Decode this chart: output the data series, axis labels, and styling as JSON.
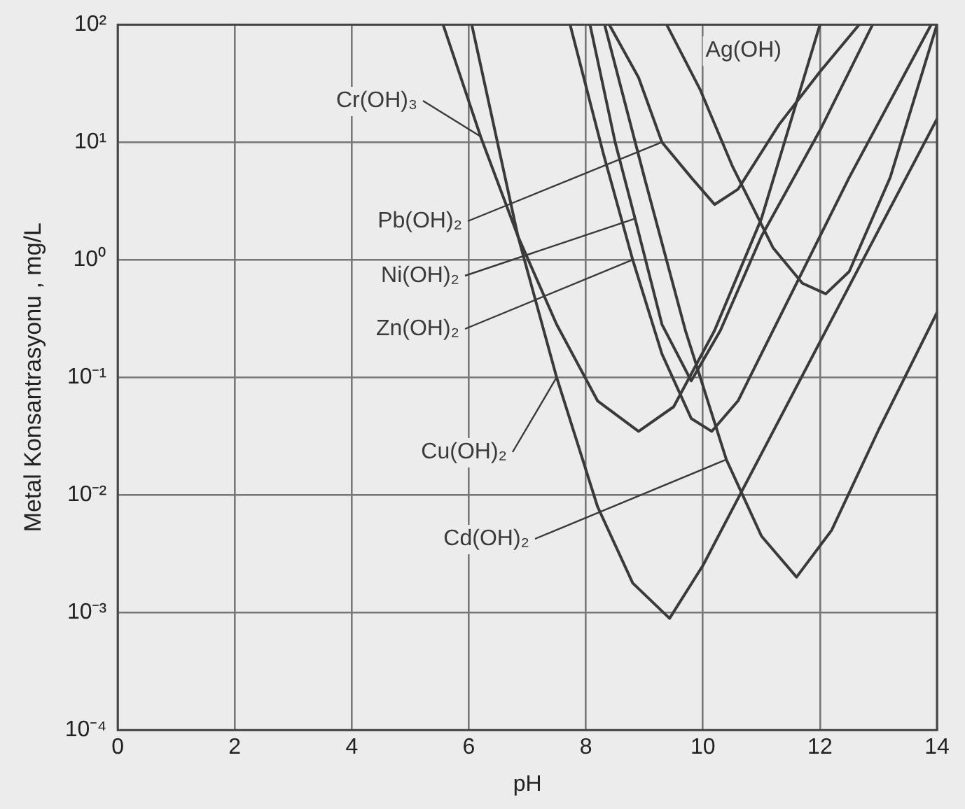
{
  "chart_data": {
    "type": "line",
    "xlabel": "pH",
    "ylabel": "Metal Konsantrasyonu , mg/L",
    "log": "y",
    "grid": true,
    "legend": false,
    "marker": "none",
    "line_style": "solid",
    "xlim": [
      0,
      14
    ],
    "xticks": [
      0,
      2,
      4,
      6,
      8,
      10,
      12,
      14
    ],
    "ylim": [
      0.0001,
      100
    ],
    "yticks": [
      {
        "value": 0.0001,
        "label": "10⁻⁴"
      },
      {
        "value": 0.001,
        "label": "10⁻³"
      },
      {
        "value": 0.01,
        "label": "10⁻²"
      },
      {
        "value": 0.1,
        "label": "10⁻¹"
      },
      {
        "value": 1,
        "label": "10⁰"
      },
      {
        "value": 10,
        "label": "10¹"
      },
      {
        "value": 100,
        "label": "10²"
      }
    ],
    "series": [
      {
        "name": "Cr(OH)₃",
        "color": "#3a3a3a",
        "x": [
          5.56,
          6.2,
          6.84,
          7.5,
          8.2,
          8.9,
          9.5,
          10.2,
          11,
          12
        ],
        "values": [
          100,
          11.2,
          1.58,
          0.282,
          0.0631,
          0.0347,
          0.0562,
          0.251,
          2.24,
          100
        ]
      },
      {
        "name": "Pb(OH)₂",
        "color": "#3a3a3a",
        "x": [
          8.4,
          8.9,
          9.3,
          9.8,
          10.2,
          10.6,
          11.3,
          12,
          12.67
        ],
        "values": [
          100,
          35.5,
          10,
          5.01,
          2.95,
          3.98,
          14.1,
          39.8,
          100
        ]
      },
      {
        "name": "Ni(OH)₂",
        "color": "#3a3a3a",
        "x": [
          8.07,
          8.5,
          8.84,
          9.3,
          9.8,
          10.3,
          11,
          12,
          12.9
        ],
        "values": [
          100,
          10,
          2.24,
          0.282,
          0.0933,
          0.251,
          1.58,
          12.6,
          100
        ]
      },
      {
        "name": "Zn(OH)₂",
        "color": "#3a3a3a",
        "x": [
          7.73,
          8.3,
          8.8,
          9.3,
          9.8,
          10.15,
          10.6,
          11.5,
          12.5,
          13.9
        ],
        "values": [
          100,
          7.94,
          1,
          0.158,
          0.0447,
          0.0347,
          0.0631,
          0.501,
          5.01,
          100
        ]
      },
      {
        "name": "Cu(OH)₂",
        "color": "#3a3a3a",
        "x": [
          6.05,
          6.84,
          7.5,
          8.2,
          8.8,
          9.43,
          10,
          11,
          12,
          13,
          14
        ],
        "values": [
          100,
          1.58,
          0.1,
          0.00794,
          0.00178,
          0.000891,
          0.00251,
          0.0224,
          0.2,
          1.78,
          15.8
        ]
      },
      {
        "name": "Cd(OH)₂",
        "color": "#3a3a3a",
        "x": [
          8.32,
          9,
          9.7,
          10.4,
          11,
          11.6,
          12.2,
          13,
          14
        ],
        "values": [
          100,
          5.01,
          0.251,
          0.02,
          0.00447,
          0.002,
          0.00501,
          0.0355,
          0.355
        ]
      },
      {
        "name": "Ag(OH)",
        "color": "#3a3a3a",
        "x": [
          9.38,
          9.95,
          10.5,
          11.2,
          11.7,
          12.1,
          12.5,
          13.2,
          14
        ],
        "values": [
          100,
          28.2,
          6.31,
          1.26,
          0.631,
          0.513,
          0.794,
          5.01,
          100
        ]
      }
    ]
  }
}
